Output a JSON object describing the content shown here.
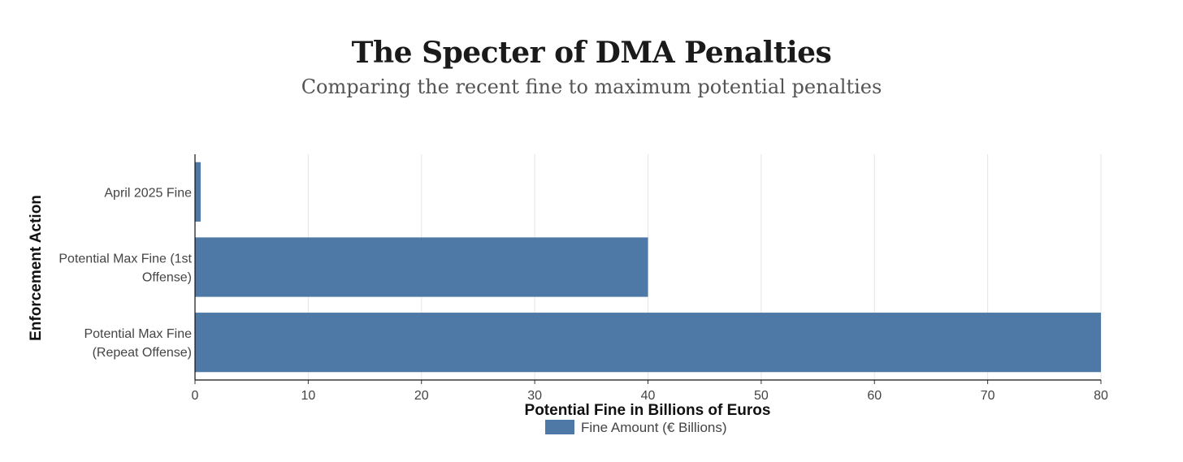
{
  "chart_data": {
    "type": "bar",
    "orientation": "horizontal",
    "title": "The Specter of DMA Penalties",
    "subtitle": "Comparing the recent fine to maximum potential penalties",
    "xlabel": "Potential Fine in Billions of Euros",
    "ylabel": "Enforcement Action",
    "categories": [
      [
        "April 2025 Fine"
      ],
      [
        "Potential Max Fine (1st",
        "Offense)"
      ],
      [
        "Potential Max Fine",
        "(Repeat Offense)"
      ]
    ],
    "series": [
      {
        "name": "Fine Amount (€ Billions)",
        "values": [
          0.5,
          40,
          80
        ],
        "color": "#4e79a7"
      }
    ],
    "xlim": [
      0,
      80
    ],
    "xticks": [
      0,
      10,
      20,
      30,
      40,
      50,
      60,
      70,
      80
    ],
    "grid": true,
    "legend_position": "bottom"
  }
}
